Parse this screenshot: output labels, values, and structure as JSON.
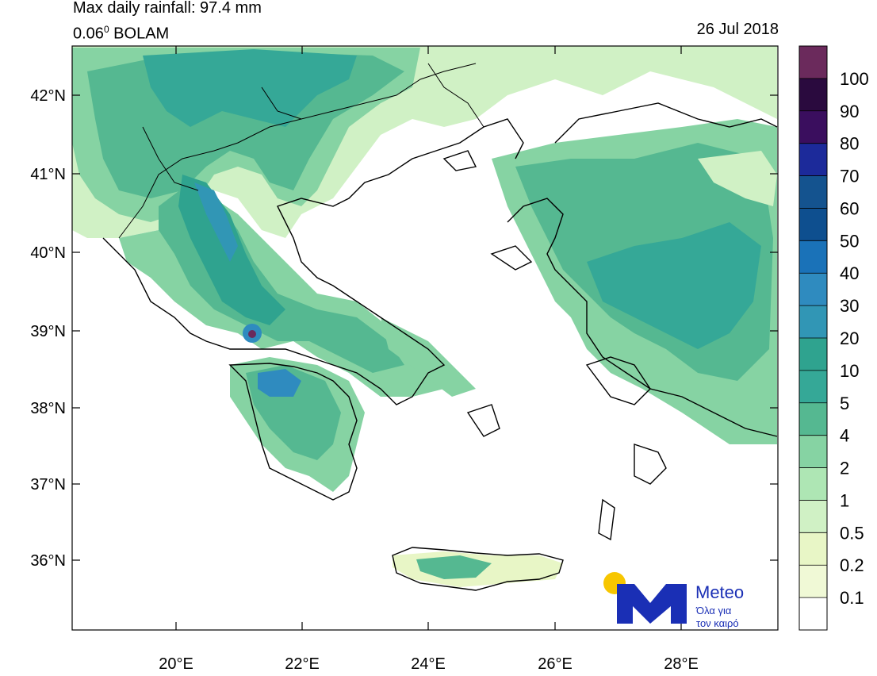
{
  "header": {
    "title": "Max daily rainfall: 97.4 mm",
    "model_prefix": "0.06",
    "model_sup": "0",
    "model_name": " BOLAM",
    "date": "26 Jul 2018"
  },
  "axes": {
    "lat_labels": [
      "42°N",
      "41°N",
      "40°N",
      "39°N",
      "38°N",
      "37°N",
      "36°N"
    ],
    "lon_labels": [
      "20°E",
      "22°E",
      "24°E",
      "26°E",
      "28°E"
    ]
  },
  "colorbar": {
    "labels": [
      "100",
      "90",
      "80",
      "70",
      "60",
      "50",
      "40",
      "30",
      "20",
      "10",
      "5",
      "4",
      "2",
      "1",
      "0.5",
      "0.2",
      "0.1"
    ],
    "colors": [
      "#6b2a5c",
      "#2a0a3e",
      "#3a0e5e",
      "#1c2a9a",
      "#14538f",
      "#0e4f8f",
      "#1a72b8",
      "#2f8bbf",
      "#3196b5",
      "#2fa38f",
      "#35a897",
      "#55b891",
      "#86d3a3",
      "#aee6b4",
      "#d0f1c5",
      "#e8f6c6",
      "#f0f9d6",
      "#ffffff"
    ]
  },
  "logo": {
    "brand": "Meteo",
    "tagline_1": "Όλα για",
    "tagline_2": "τον καιρό",
    "sun_color": "#f7c600",
    "brand_color": "#1a2fb5"
  }
}
